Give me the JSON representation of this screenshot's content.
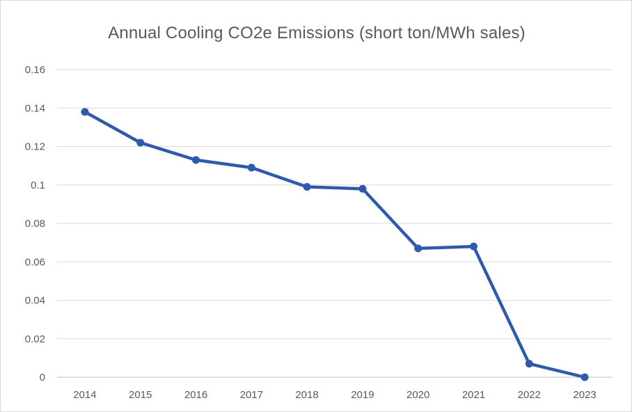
{
  "chart_data": {
    "type": "line",
    "title": "Annual Cooling CO2e Emissions (short ton/MWh sales)",
    "xlabel": "",
    "ylabel": "",
    "categories": [
      "2014",
      "2015",
      "2016",
      "2017",
      "2018",
      "2019",
      "2020",
      "2021",
      "2022",
      "2023"
    ],
    "series": [
      {
        "name": "Annual Cooling CO2e Emissions",
        "color": "#2E5AAC",
        "values": [
          0.138,
          0.122,
          0.113,
          0.109,
          0.099,
          0.098,
          0.067,
          0.068,
          0.007,
          0.0
        ]
      }
    ],
    "ylim": [
      0,
      0.16
    ],
    "yticks": [
      0,
      0.02,
      0.04,
      0.06,
      0.08,
      0.1,
      0.12,
      0.14,
      0.16
    ],
    "ytick_labels": [
      "0",
      "0.02",
      "0.04",
      "0.06",
      "0.08",
      "0.1",
      "0.12",
      "0.14",
      "0.16"
    ],
    "grid": true,
    "legend": "none"
  }
}
